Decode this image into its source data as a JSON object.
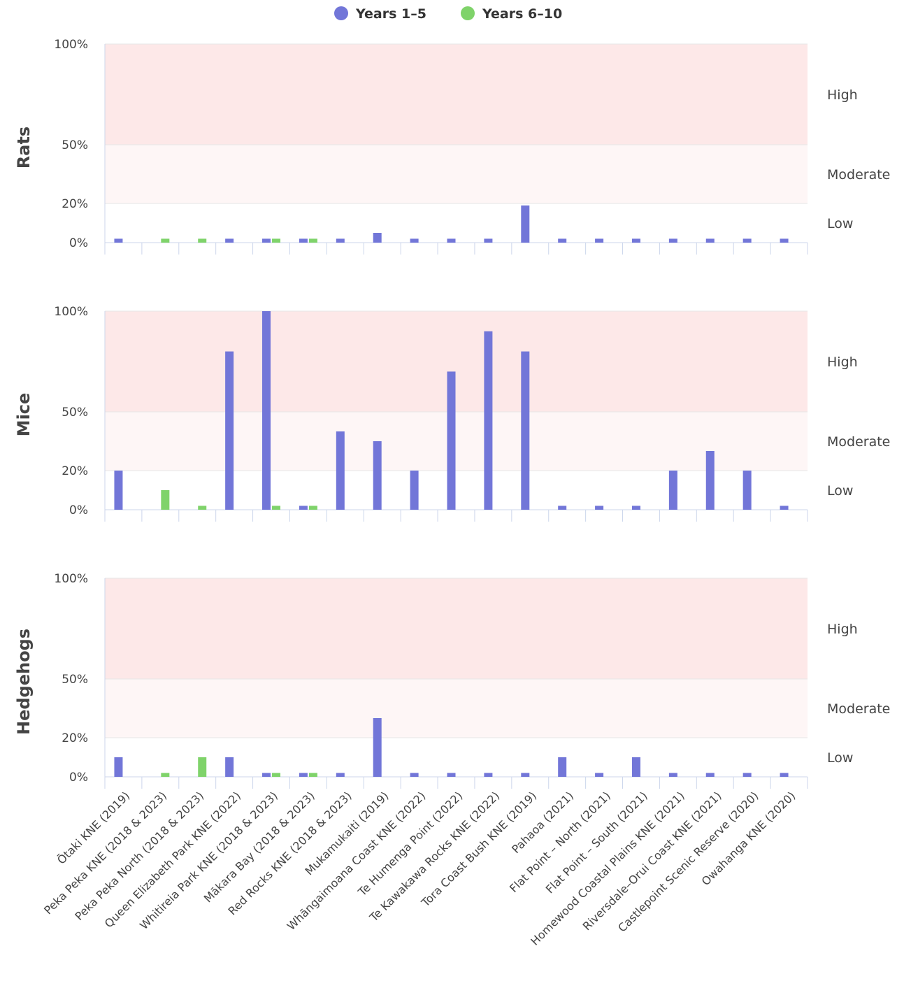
{
  "legend": [
    {
      "name": "Years 1–5",
      "color": "#7276d8"
    },
    {
      "name": "Years 6–10",
      "color": "#7fd36a"
    }
  ],
  "colors": {
    "high_band": "#fde8e8",
    "moderate_band": "#fef6f6",
    "axis": "#ccd6eb",
    "gridline": "#e6e6e6"
  },
  "chart_data": {
    "type": "bar",
    "categories": [
      "Ōtaki KNE (2019)",
      "Peka Peka KNE (2018 & 2023)",
      "Peka Peka North (2018 & 2023)",
      "Queen Elizabeth Park KNE (2022)",
      "Whitireia Park KNE (2018 & 2023)",
      "Mākara Bay (2018 & 2023)",
      "Red Rocks KNE (2018 & 2023)",
      "Mukamukaiti (2019)",
      "Whāngaimoana Coast KNE (2022)",
      "Te Humenga Point (2022)",
      "Te Kawakawa Rocks KNE (2022)",
      "Tora Coast Bush KNE (2019)",
      "Pahaoa (2021)",
      "Flat Point – North (2021)",
      "Flat Point – South (2021)",
      "Homewood Coastal Plains KNE (2021)",
      "Riversdale–Orui Coast KNE (2021)",
      "Castlepoint Scenic Reserve (2020)",
      "Owahanga KNE (2020)"
    ],
    "y_ticks": [
      "0%",
      "20%",
      "50%",
      "100%"
    ],
    "bands": [
      {
        "label": "Low",
        "from": 0,
        "to": 20
      },
      {
        "label": "Moderate",
        "from": 20,
        "to": 50
      },
      {
        "label": "High",
        "from": 50,
        "to": 100
      }
    ],
    "panels": [
      {
        "title": "Rats",
        "series": [
          {
            "name": "Years 1–5",
            "values": [
              2,
              null,
              null,
              2,
              2,
              2,
              2,
              5,
              2,
              2,
              2,
              19,
              2,
              2,
              2,
              2,
              2,
              2,
              2
            ]
          },
          {
            "name": "Years 6–10",
            "values": [
              null,
              2,
              2,
              null,
              2,
              2,
              null,
              null,
              null,
              null,
              null,
              null,
              null,
              null,
              null,
              null,
              null,
              null,
              null
            ]
          }
        ]
      },
      {
        "title": "Mice",
        "series": [
          {
            "name": "Years 1–5",
            "values": [
              20,
              null,
              null,
              80,
              100,
              2,
              40,
              35,
              20,
              70,
              90,
              80,
              2,
              2,
              2,
              20,
              30,
              20,
              2
            ]
          },
          {
            "name": "Years 6–10",
            "values": [
              null,
              10,
              2,
              null,
              2,
              2,
              null,
              null,
              null,
              null,
              null,
              null,
              null,
              null,
              null,
              null,
              null,
              null,
              null
            ]
          }
        ]
      },
      {
        "title": "Hedgehogs",
        "series": [
          {
            "name": "Years 1–5",
            "values": [
              10,
              null,
              null,
              10,
              2,
              2,
              2,
              30,
              2,
              2,
              2,
              2,
              10,
              2,
              10,
              2,
              2,
              2,
              2
            ]
          },
          {
            "name": "Years 6–10",
            "values": [
              null,
              2,
              10,
              null,
              2,
              2,
              null,
              null,
              null,
              null,
              null,
              null,
              null,
              null,
              null,
              null,
              null,
              null,
              null
            ]
          }
        ]
      }
    ]
  }
}
